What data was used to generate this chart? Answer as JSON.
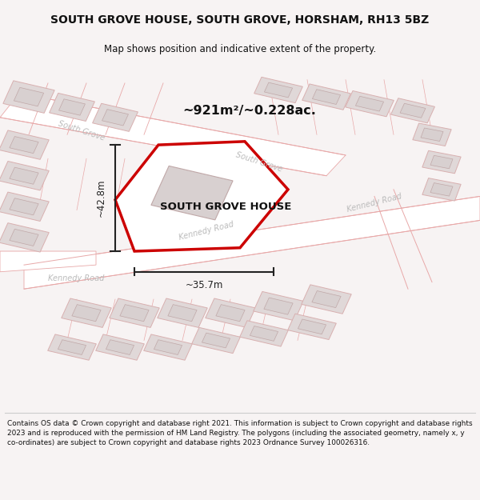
{
  "title": "SOUTH GROVE HOUSE, SOUTH GROVE, HORSHAM, RH13 5BZ",
  "subtitle": "Map shows position and indicative extent of the property.",
  "area_text": "~921m²/~0.228ac.",
  "property_label": "SOUTH GROVE HOUSE",
  "dim_vertical": "~42.8m",
  "dim_horizontal": "~35.7m",
  "footer_text": "Contains OS data © Crown copyright and database right 2021. This information is subject to Crown copyright and database rights 2023 and is reproduced with the permission of HM Land Registry. The polygons (including the associated geometry, namely x, y co-ordinates) are subject to Crown copyright and database rights 2023 Ordnance Survey 100026316.",
  "map_bg": "#f7f3f3",
  "road_fill": "#ffffff",
  "road_edge": "#e8a8a8",
  "building_fill": "#e0d8d8",
  "building_edge": "#d8b0b0",
  "property_fill": "#f0eaea",
  "property_stroke": "#cc0000",
  "inner_fill": "#d8d0d0",
  "inner_edge": "#c0a8a8",
  "title_bg": "#f7f3f3",
  "footer_bg": "#ffffff",
  "dim_color": "#222222",
  "label_color": "#aaaaaa",
  "title_color": "#111111"
}
